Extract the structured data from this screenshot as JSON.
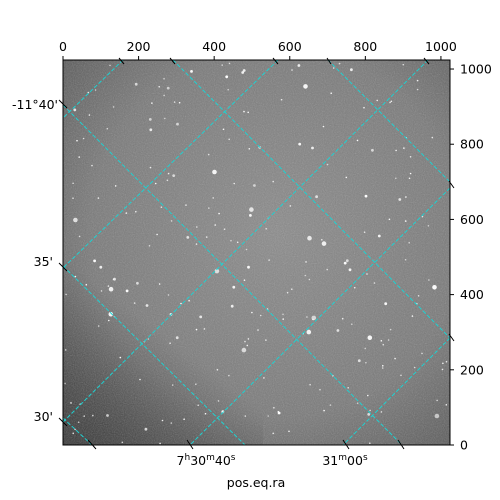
{
  "image": {
    "kind": "astronomical grayscale star field with WCS overlay",
    "background_color": "#7a7a7a",
    "grid_color": "#1fd1d1"
  },
  "pixel_axes": {
    "x_range": [
      0,
      1024
    ],
    "y_range": [
      0,
      1024
    ],
    "x_ticks": [
      "0",
      "200",
      "400",
      "600",
      "800",
      "1000"
    ],
    "y_ticks": [
      "0",
      "200",
      "400",
      "600",
      "800",
      "1000"
    ]
  },
  "world_axes": {
    "ra_label": "pos.eq.ra",
    "ra_ticks": [
      {
        "h": "7",
        "m": "30",
        "s": "40",
        "show_h": true,
        "show_m": true
      },
      {
        "h": "",
        "m": "31",
        "s": "00",
        "show_h": false,
        "show_m": true
      }
    ],
    "dec_ticks": [
      "-11°40'",
      "35'",
      "30'"
    ]
  }
}
